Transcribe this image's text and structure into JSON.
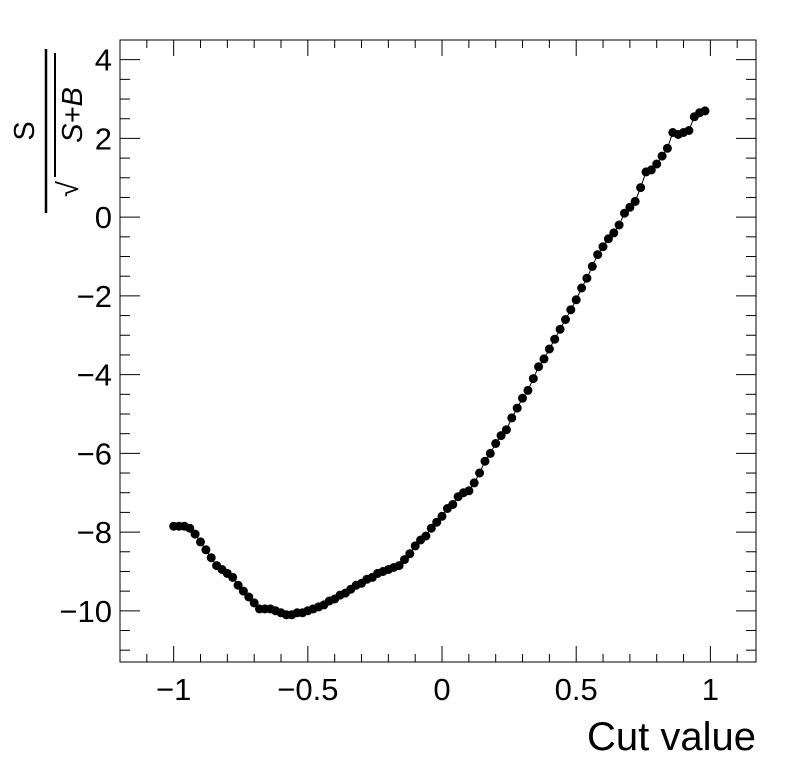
{
  "chart_data": {
    "type": "scatter",
    "connected": true,
    "title": "",
    "xlabel": "Cut value",
    "ylabel": {
      "numerator": "S",
      "denominator_expr": "S+B",
      "radical": "√"
    },
    "xlim": [
      -1.2,
      1.17
    ],
    "ylim": [
      -11.3,
      4.5
    ],
    "x_ticks": [
      -1,
      -0.5,
      0,
      0.5,
      1
    ],
    "x_tick_labels": [
      "−1",
      "−0.5",
      "0",
      "0.5",
      "1"
    ],
    "y_ticks": [
      -10,
      -8,
      -6,
      -4,
      -2,
      0,
      2,
      4
    ],
    "y_tick_labels": [
      "−10",
      "−8",
      "−6",
      "−4",
      "−2",
      "0",
      "2",
      "4"
    ],
    "grid": false,
    "legend": "none",
    "marker_color": "#000000",
    "line_color": "#000000",
    "series": [
      {
        "x": [
          -1.0,
          -0.98,
          -0.96,
          -0.94,
          -0.92,
          -0.9,
          -0.88,
          -0.86,
          -0.84,
          -0.82,
          -0.8,
          -0.78,
          -0.76,
          -0.74,
          -0.72,
          -0.7,
          -0.68,
          -0.66,
          -0.64,
          -0.62,
          -0.6,
          -0.58,
          -0.56,
          -0.54,
          -0.52,
          -0.5,
          -0.48,
          -0.46,
          -0.44,
          -0.42,
          -0.4,
          -0.38,
          -0.36,
          -0.34,
          -0.32,
          -0.3,
          -0.28,
          -0.26,
          -0.24,
          -0.22,
          -0.2,
          -0.18,
          -0.16,
          -0.14,
          -0.12,
          -0.1,
          -0.08,
          -0.06,
          -0.04,
          -0.02,
          0.0,
          0.02,
          0.04,
          0.06,
          0.08,
          0.1,
          0.12,
          0.14,
          0.16,
          0.18,
          0.2,
          0.22,
          0.24,
          0.26,
          0.28,
          0.3,
          0.32,
          0.34,
          0.36,
          0.38,
          0.4,
          0.42,
          0.44,
          0.46,
          0.48,
          0.5,
          0.52,
          0.54,
          0.56,
          0.58,
          0.6,
          0.62,
          0.64,
          0.66,
          0.68,
          0.7,
          0.72,
          0.74,
          0.76,
          0.78,
          0.8,
          0.82,
          0.84,
          0.86,
          0.88,
          0.9,
          0.92,
          0.94,
          0.96,
          0.98
        ],
        "y": [
          -7.85,
          -7.85,
          -7.85,
          -7.9,
          -8.05,
          -8.25,
          -8.45,
          -8.65,
          -8.85,
          -8.95,
          -9.05,
          -9.15,
          -9.35,
          -9.5,
          -9.65,
          -9.8,
          -9.95,
          -9.95,
          -9.95,
          -10.0,
          -10.05,
          -10.1,
          -10.1,
          -10.05,
          -10.05,
          -10.0,
          -9.95,
          -9.9,
          -9.85,
          -9.75,
          -9.7,
          -9.6,
          -9.55,
          -9.45,
          -9.35,
          -9.3,
          -9.2,
          -9.15,
          -9.05,
          -9.0,
          -8.95,
          -8.9,
          -8.85,
          -8.7,
          -8.55,
          -8.35,
          -8.2,
          -8.1,
          -7.9,
          -7.75,
          -7.6,
          -7.4,
          -7.3,
          -7.1,
          -7.0,
          -6.95,
          -6.75,
          -6.5,
          -6.2,
          -6.0,
          -5.75,
          -5.55,
          -5.4,
          -5.1,
          -4.85,
          -4.6,
          -4.4,
          -4.1,
          -3.8,
          -3.6,
          -3.35,
          -3.1,
          -2.85,
          -2.6,
          -2.35,
          -2.1,
          -1.8,
          -1.55,
          -1.25,
          -0.95,
          -0.75,
          -0.55,
          -0.4,
          -0.2,
          0.1,
          0.25,
          0.4,
          0.75,
          1.15,
          1.2,
          1.35,
          1.55,
          1.75,
          2.15,
          2.1,
          2.15,
          2.2,
          2.55,
          2.65,
          2.7
        ]
      }
    ]
  }
}
